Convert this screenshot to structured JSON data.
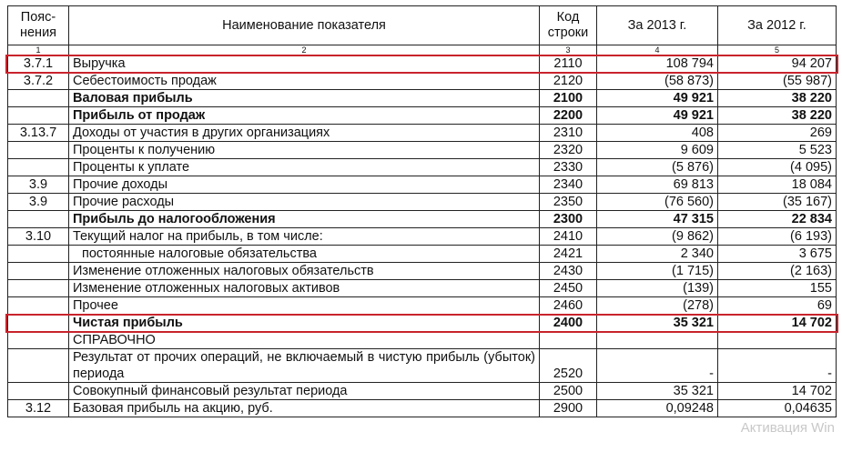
{
  "headers": [
    "Пояс-нения",
    "Наименование показателя",
    "Код строки",
    "За 2013 г.",
    "За 2012 г."
  ],
  "column_numbers": [
    "1",
    "2",
    "3",
    "4",
    "5"
  ],
  "rows": [
    {
      "note": "3.7.1",
      "name": "Выручка",
      "code": "2110",
      "y2013": "108 794",
      "y2012": "94 207",
      "bold": false
    },
    {
      "note": "3.7.2",
      "name": "Себестоимость продаж",
      "code": "2120",
      "y2013": "(58 873)",
      "y2012": "(55 987)",
      "bold": false
    },
    {
      "note": "",
      "name": "Валовая прибыль",
      "code": "2100",
      "y2013": "49 921",
      "y2012": "38 220",
      "bold": true
    },
    {
      "note": "",
      "name": "Прибыль от продаж",
      "code": "2200",
      "y2013": "49 921",
      "y2012": "38 220",
      "bold": true
    },
    {
      "note": "3.13.7",
      "name": "Доходы от участия в других организациях",
      "code": "2310",
      "y2013": "408",
      "y2012": "269",
      "bold": false
    },
    {
      "note": "",
      "name": "Проценты к получению",
      "code": "2320",
      "y2013": "9 609",
      "y2012": "5 523",
      "bold": false
    },
    {
      "note": "",
      "name": "Проценты к уплате",
      "code": "2330",
      "y2013": "(5 876)",
      "y2012": "(4 095)",
      "bold": false
    },
    {
      "note": "3.9",
      "name": "Прочие доходы",
      "code": "2340",
      "y2013": "69 813",
      "y2012": "18 084",
      "bold": false
    },
    {
      "note": "3.9",
      "name": "Прочие расходы",
      "code": "2350",
      "y2013": "(76 560)",
      "y2012": "(35 167)",
      "bold": false
    },
    {
      "note": "",
      "name": "Прибыль до налогообложения",
      "code": "2300",
      "y2013": "47 315",
      "y2012": "22 834",
      "bold": true
    },
    {
      "note": "3.10",
      "name": "Текущий налог на прибыль, в том числе:",
      "code": "2410",
      "y2013": "(9 862)",
      "y2012": "(6 193)",
      "bold": false
    },
    {
      "note": "",
      "name": "постоянные налоговые обязательства",
      "code": "2421",
      "y2013": "2 340",
      "y2012": "3 675",
      "bold": false,
      "indent": true
    },
    {
      "note": "",
      "name": "Изменение отложенных налоговых обязательств",
      "code": "2430",
      "y2013": "(1 715)",
      "y2012": "(2 163)",
      "bold": false
    },
    {
      "note": "",
      "name": "Изменение отложенных налоговых активов",
      "code": "2450",
      "y2013": "(139)",
      "y2012": "155",
      "bold": false
    },
    {
      "note": "",
      "name": "Прочее",
      "code": "2460",
      "y2013": "(278)",
      "y2012": "69",
      "bold": false
    },
    {
      "note": "",
      "name": "Чистая прибыль",
      "code": "2400",
      "y2013": "35 321",
      "y2012": "14 702",
      "bold": true
    },
    {
      "note": "",
      "name": "СПРАВОЧНО",
      "code": "",
      "y2013": "",
      "y2012": "",
      "bold": false
    },
    {
      "note": "",
      "name": "Результат от прочих операций, не включаемый в чистую прибыль (убыток) периода",
      "code": "2520",
      "y2013": "-",
      "y2012": "-",
      "bold": false,
      "wrap": true
    },
    {
      "note": "",
      "name": "Совокупный финансовый результат периода",
      "code": "2500",
      "y2013": "35 321",
      "y2012": "14 702",
      "bold": false
    },
    {
      "note": "3.12",
      "name": "Базовая прибыль на акцию, руб.",
      "code": "2900",
      "y2013": "0,09248",
      "y2012": "0,04635",
      "bold": false
    }
  ],
  "highlight_color": "#c8232c",
  "watermark": "Активация Win"
}
